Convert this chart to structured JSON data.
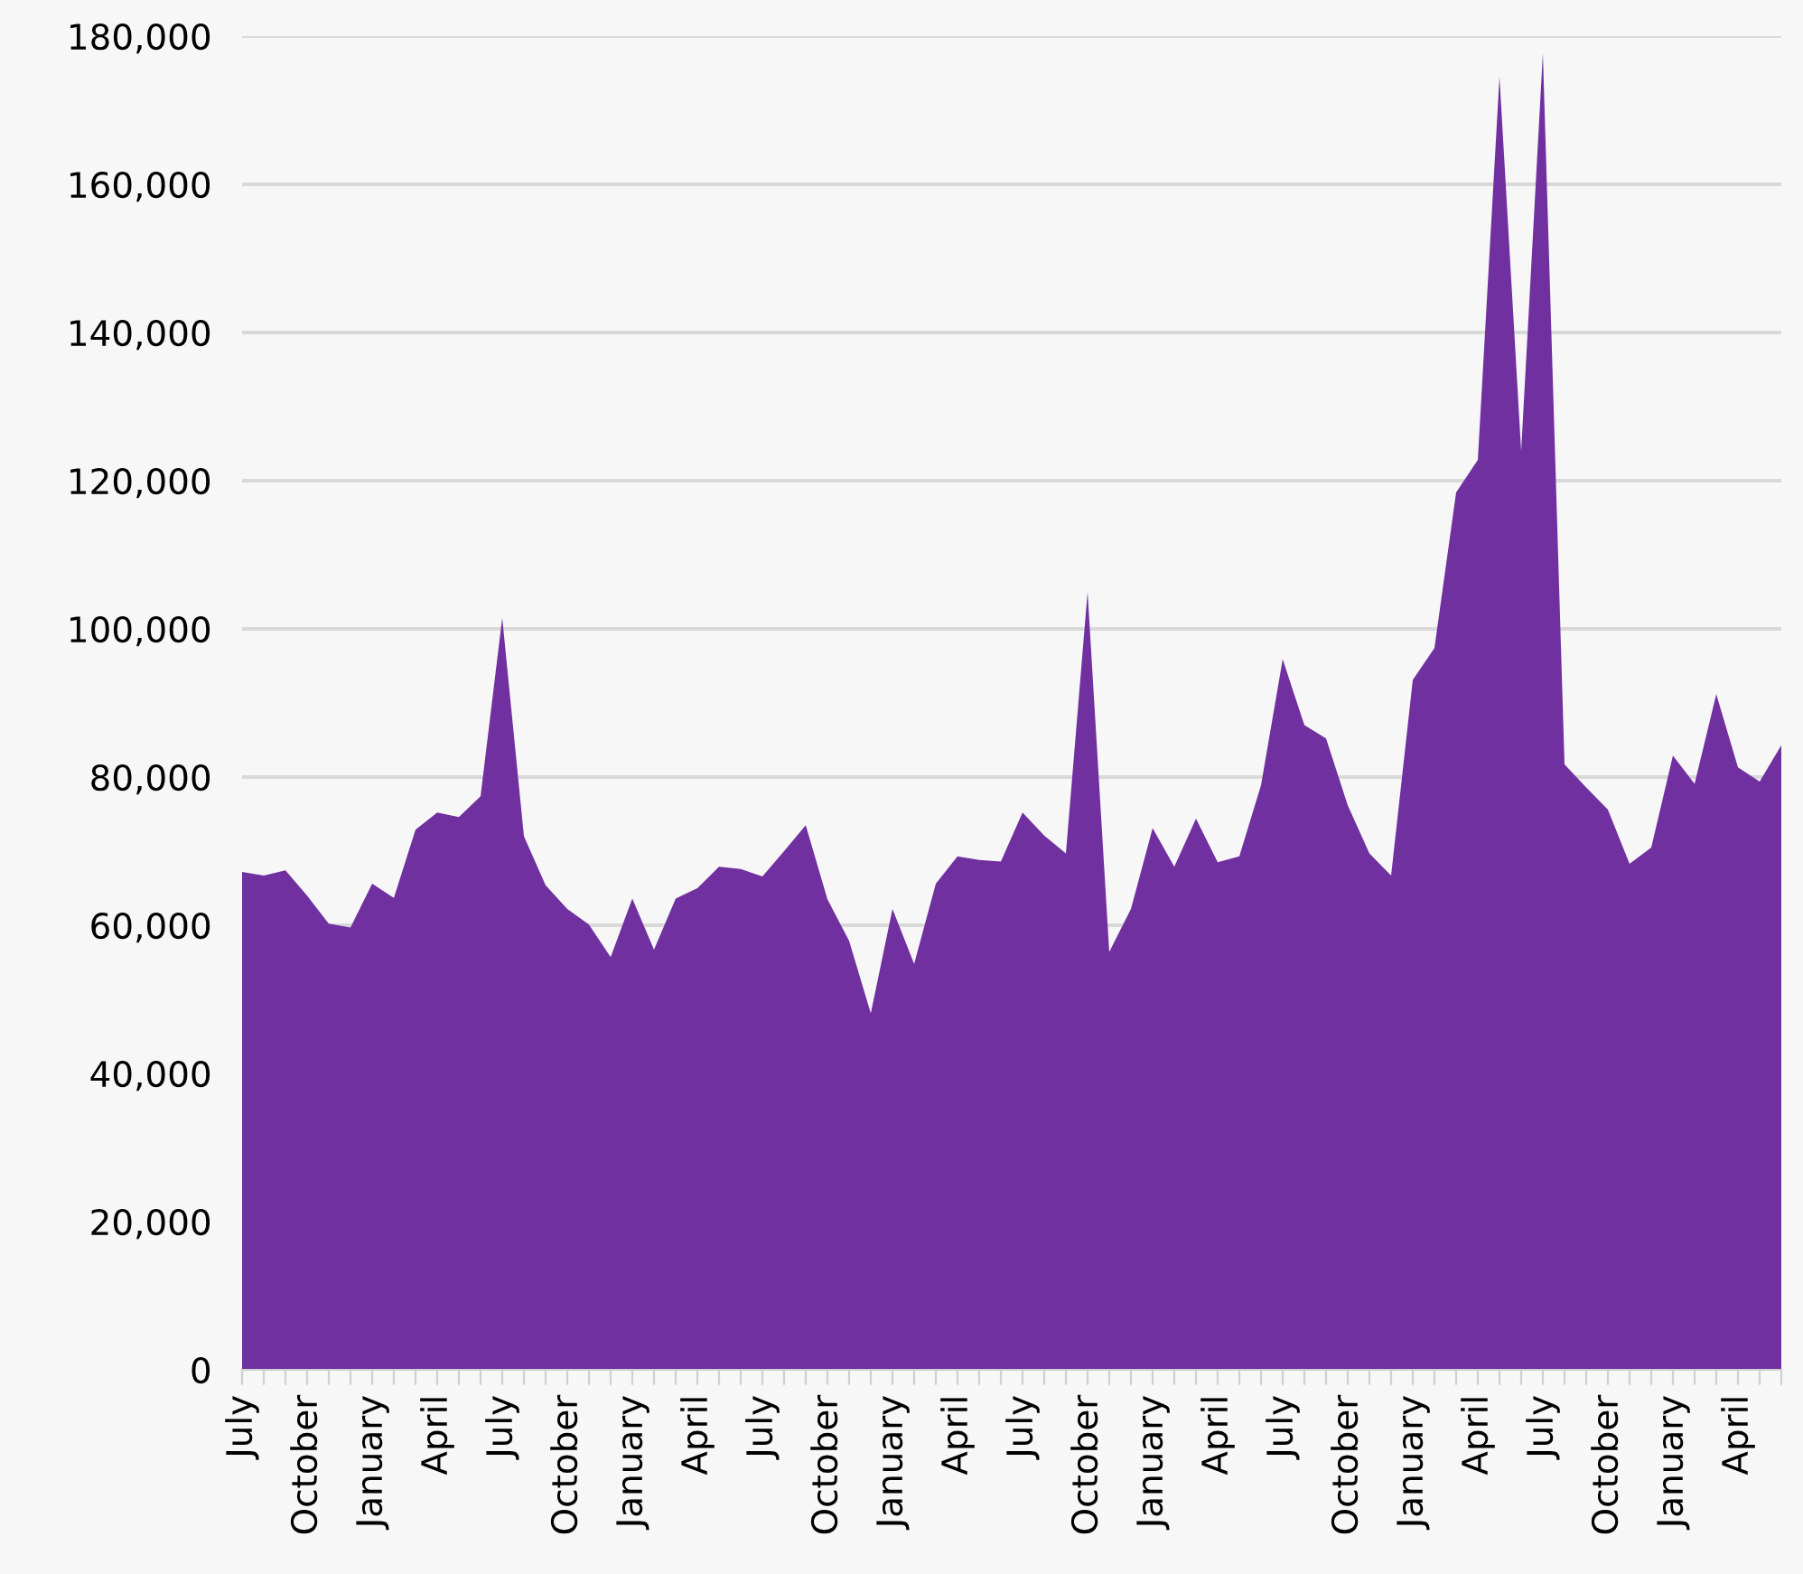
{
  "chart_data": {
    "type": "area",
    "categories": [
      "July",
      null,
      null,
      "October",
      null,
      null,
      "January",
      null,
      null,
      "April",
      null,
      null,
      "July",
      null,
      null,
      "October",
      null,
      null,
      "January",
      null,
      null,
      "April",
      null,
      null,
      "July",
      null,
      null,
      "October",
      null,
      null,
      "January",
      null,
      null,
      "April",
      null,
      null,
      "July",
      null,
      null,
      "October",
      null,
      null,
      "January",
      null,
      null,
      "April",
      null,
      null,
      "July",
      null,
      null,
      "October",
      null,
      null,
      "January",
      null,
      null,
      "April",
      null,
      null,
      "July",
      null,
      null,
      "October",
      null,
      null,
      "January",
      null,
      null,
      "April",
      null,
      null
    ],
    "series": [
      {
        "color": "#7030a0",
        "values": [
          67200,
          66700,
          67400,
          64000,
          60200,
          59700,
          65600,
          63700,
          72900,
          75200,
          74600,
          77400,
          101500,
          72000,
          65400,
          62200,
          60100,
          55700,
          63600,
          56700,
          63600,
          65000,
          67900,
          67600,
          66600,
          70000,
          73500,
          63500,
          57900,
          48100,
          62200,
          54800,
          65600,
          69300,
          68800,
          68600,
          75200,
          72100,
          69700,
          105000,
          56400,
          62200,
          73100,
          67900,
          74400,
          68500,
          69300,
          78900,
          95900,
          87000,
          85200,
          76200,
          69700,
          66700,
          93100,
          97400,
          118400,
          122800,
          174500,
          124000,
          177700,
          81700,
          78600,
          75600,
          68300,
          70500,
          82900,
          79100,
          91200,
          81300,
          79400,
          84300
        ]
      }
    ],
    "ylim": [
      0,
      180000
    ],
    "yticks": [
      0,
      {
        "value": 20000,
        "label": "20,000"
      },
      {
        "value": 40000,
        "label": "40,000"
      },
      {
        "value": 60000,
        "label": "60,000"
      },
      {
        "value": 80000,
        "label": "80,000"
      },
      {
        "value": 100000,
        "label": "100,000"
      },
      {
        "value": 120000,
        "label": "120,000"
      },
      {
        "value": 140000,
        "label": "140,000"
      },
      {
        "value": 160000,
        "label": "160,000"
      },
      {
        "value": 180000,
        "label": "180,000"
      }
    ],
    "grid": "y"
  }
}
